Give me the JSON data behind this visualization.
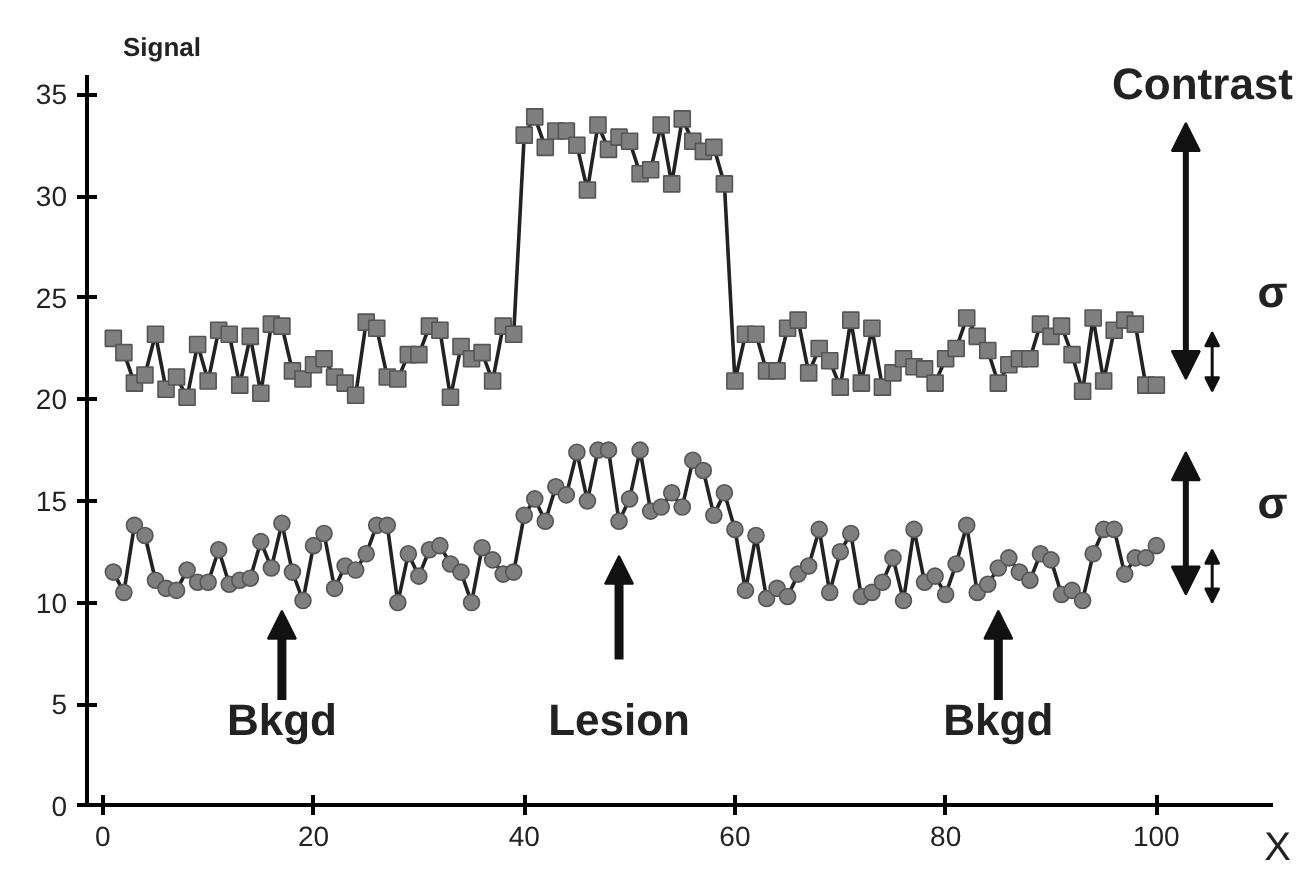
{
  "chart_data": {
    "type": "line",
    "xlabel": "X",
    "ylabel": "Signal",
    "xlim": [
      -1.5,
      111
    ],
    "ylim": [
      0,
      36
    ],
    "xticks": [
      0,
      20,
      40,
      60,
      80,
      100
    ],
    "yticks": [
      0,
      5,
      10,
      15,
      20,
      25,
      30,
      35
    ],
    "grid": false,
    "line_style": "solid",
    "series": [
      {
        "color": "#7f7f7f",
        "marker": "square",
        "x": [
          1,
          2,
          3,
          4,
          5,
          6,
          7,
          8,
          9,
          10,
          11,
          12,
          13,
          14,
          15,
          16,
          17,
          18,
          19,
          20,
          21,
          22,
          23,
          24,
          25,
          26,
          27,
          28,
          29,
          30,
          31,
          32,
          33,
          34,
          35,
          36,
          37,
          38,
          39,
          40,
          41,
          42,
          43,
          44,
          45,
          46,
          47,
          48,
          49,
          50,
          51,
          52,
          53,
          54,
          55,
          56,
          57,
          58,
          59,
          60,
          61,
          62,
          63,
          64,
          65,
          66,
          67,
          68,
          69,
          70,
          71,
          72,
          73,
          74,
          75,
          76,
          77,
          78,
          79,
          80,
          81,
          82,
          83,
          84,
          85,
          86,
          87,
          88,
          89,
          90,
          91,
          92,
          93,
          94,
          95,
          96,
          97,
          98,
          99,
          100
        ],
        "values": [
          23,
          22.3,
          20.8,
          21.2,
          23.2,
          20.5,
          21.1,
          20.1,
          22.7,
          20.9,
          23.4,
          23.2,
          20.7,
          23.1,
          20.3,
          23.7,
          23.6,
          21.4,
          21,
          21.7,
          22,
          21.1,
          20.8,
          20.2,
          23.8,
          23.5,
          21.1,
          21,
          22.2,
          22.2,
          23.6,
          23.4,
          20.1,
          22.6,
          22,
          22.3,
          20.9,
          23.6,
          23.2,
          33,
          33.9,
          32.4,
          33.2,
          33.2,
          32.5,
          30.3,
          33.5,
          32.3,
          32.9,
          32.7,
          31.1,
          31.3,
          33.5,
          30.6,
          33.8,
          32.7,
          32.2,
          32.4,
          30.6,
          20.9,
          23.2,
          23.2,
          21.4,
          21.4,
          23.5,
          23.9,
          21.3,
          22.5,
          21.9,
          20.6,
          23.9,
          20.8,
          23.5,
          20.6,
          21.3,
          22,
          21.6,
          21.5,
          20.8,
          22,
          22.5,
          24,
          23.1,
          22.4,
          20.8,
          21.7,
          22,
          22,
          23.7,
          23.1,
          23.6,
          22.2,
          20.4,
          24,
          20.9,
          23.4,
          23.9,
          23.7,
          20.7,
          20.7
        ]
      },
      {
        "color": "#7f7f7f",
        "marker": "circle",
        "x": [
          1,
          2,
          3,
          4,
          5,
          6,
          7,
          8,
          9,
          10,
          11,
          12,
          13,
          14,
          15,
          16,
          17,
          18,
          19,
          20,
          21,
          22,
          23,
          24,
          25,
          26,
          27,
          28,
          29,
          30,
          31,
          32,
          33,
          34,
          35,
          36,
          37,
          38,
          39,
          40,
          41,
          42,
          43,
          44,
          45,
          46,
          47,
          48,
          49,
          50,
          51,
          52,
          53,
          54,
          55,
          56,
          57,
          58,
          59,
          60,
          61,
          62,
          63,
          64,
          65,
          66,
          67,
          68,
          69,
          70,
          71,
          72,
          73,
          74,
          75,
          76,
          77,
          78,
          79,
          80,
          81,
          82,
          83,
          84,
          85,
          86,
          87,
          88,
          89,
          90,
          91,
          92,
          93,
          94,
          95,
          96,
          97,
          98,
          99,
          100
        ],
        "values": [
          11.5,
          10.5,
          13.8,
          13.3,
          11.1,
          10.7,
          10.6,
          11.6,
          11,
          11,
          12.6,
          10.9,
          11.1,
          11.2,
          13,
          11.7,
          13.9,
          11.5,
          10.1,
          12.8,
          13.4,
          10.7,
          11.8,
          11.6,
          12.4,
          13.8,
          13.8,
          10,
          12.4,
          11.3,
          12.6,
          12.8,
          11.9,
          11.5,
          10,
          12.7,
          12.1,
          11.4,
          11.5,
          14.3,
          15.1,
          14,
          15.7,
          15.3,
          17.4,
          15,
          17.5,
          17.5,
          14,
          15.1,
          17.5,
          14.5,
          14.7,
          15.4,
          14.7,
          17,
          16.5,
          14.3,
          15.4,
          13.6,
          10.6,
          13.3,
          10.2,
          10.7,
          10.3,
          11.4,
          11.8,
          13.6,
          10.5,
          12.5,
          13.4,
          10.3,
          10.5,
          11,
          12.2,
          10.1,
          13.6,
          11,
          11.3,
          10.4,
          11.9,
          13.8,
          10.5,
          10.9,
          11.7,
          12.2,
          11.5,
          11.1,
          12.4,
          12.1,
          10.4,
          10.6,
          10.1,
          12.4,
          13.6,
          13.6,
          11.4,
          12.2,
          12.2,
          12.8
        ]
      }
    ],
    "annotations": [
      "Bkgd",
      "Lesion",
      "Bkgd",
      "Contrast",
      "σ",
      "σ"
    ]
  }
}
